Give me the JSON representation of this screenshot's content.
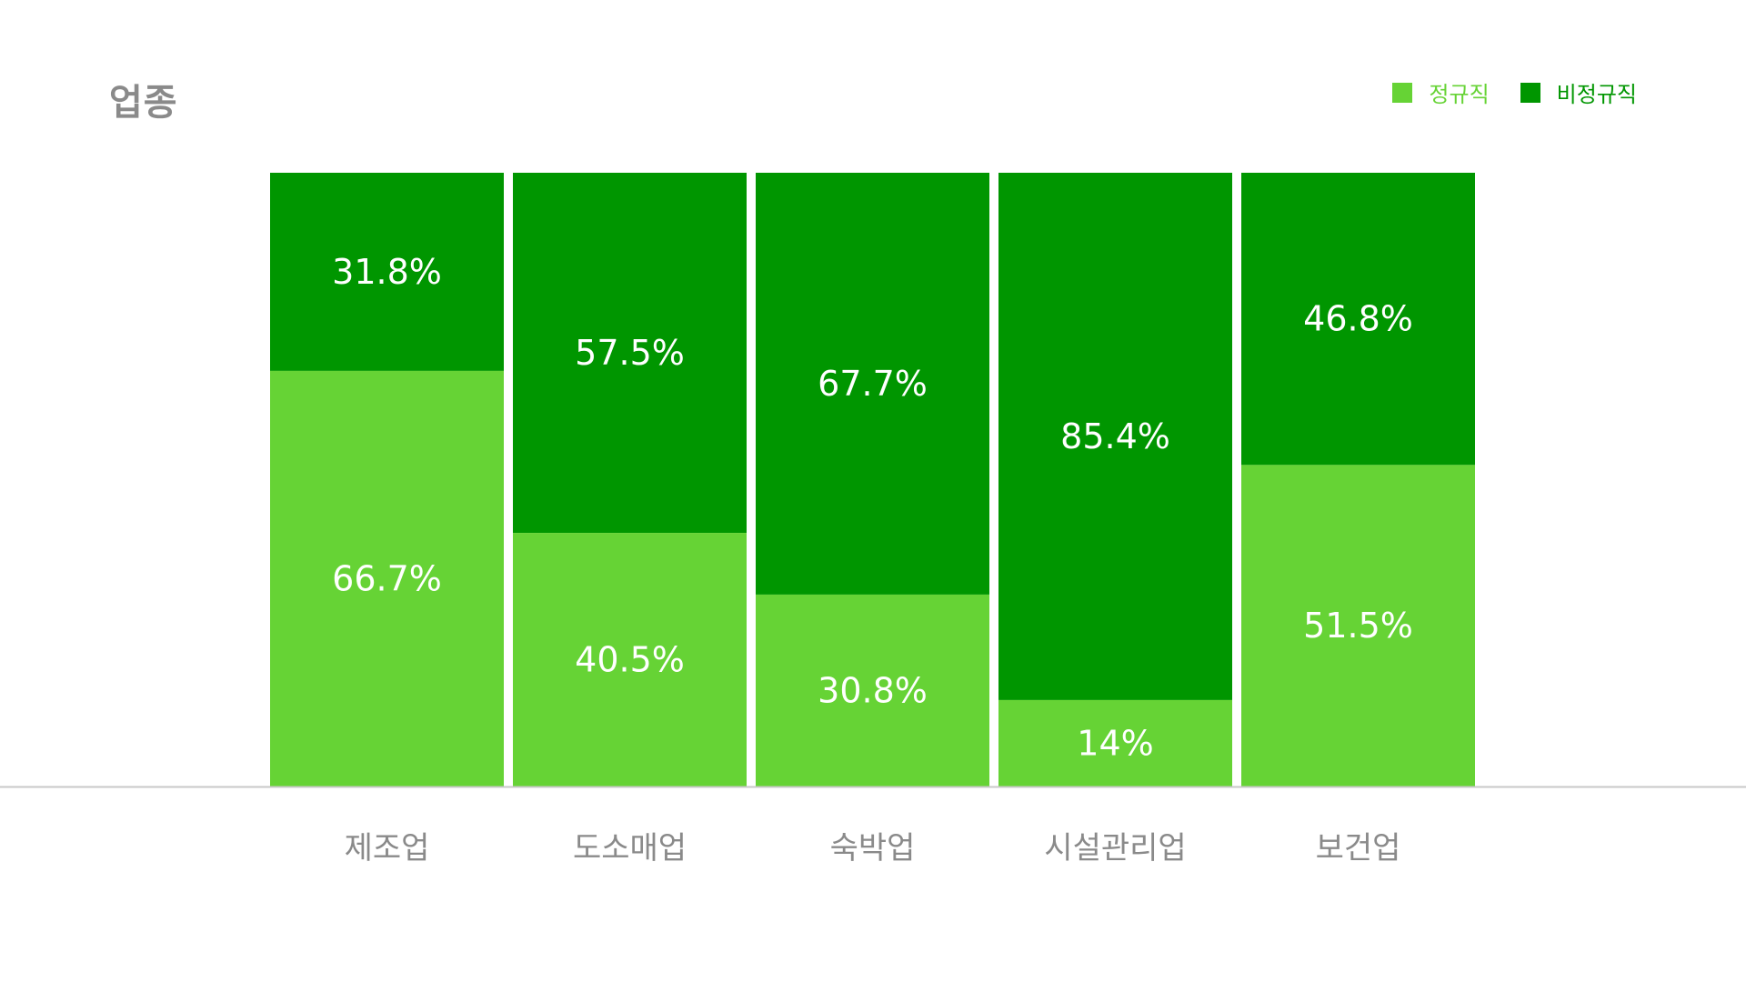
{
  "title": "업종",
  "colors": {
    "regular": "#66d335",
    "irregular": "#009600",
    "axis": "#c8c8c8",
    "tick_text": "#8a8a8a",
    "title_text": "#8a8a8a",
    "bar_text": "#ffffff"
  },
  "legend": [
    {
      "label": "정규직",
      "color": "#66d335"
    },
    {
      "label": "비정규직",
      "color": "#009600"
    }
  ],
  "chart_data": {
    "type": "bar",
    "stacked": true,
    "normalized": true,
    "title": "업종",
    "categories": [
      "제조업",
      "도소매업",
      "숙박업",
      "시설관리업",
      "보건업"
    ],
    "series": [
      {
        "name": "정규직",
        "values": [
          66.7,
          40.5,
          30.8,
          14,
          51.5
        ],
        "labels": [
          "66.7%",
          "40.5%",
          "30.8%",
          "14%",
          "51.5%"
        ]
      },
      {
        "name": "비정규직",
        "values": [
          31.8,
          57.5,
          67.7,
          85.4,
          46.8
        ],
        "labels": [
          "31.8%",
          "57.5%",
          "67.7%",
          "85.4%",
          "46.8%"
        ]
      }
    ],
    "legend_position": "top-right",
    "grid": false
  }
}
